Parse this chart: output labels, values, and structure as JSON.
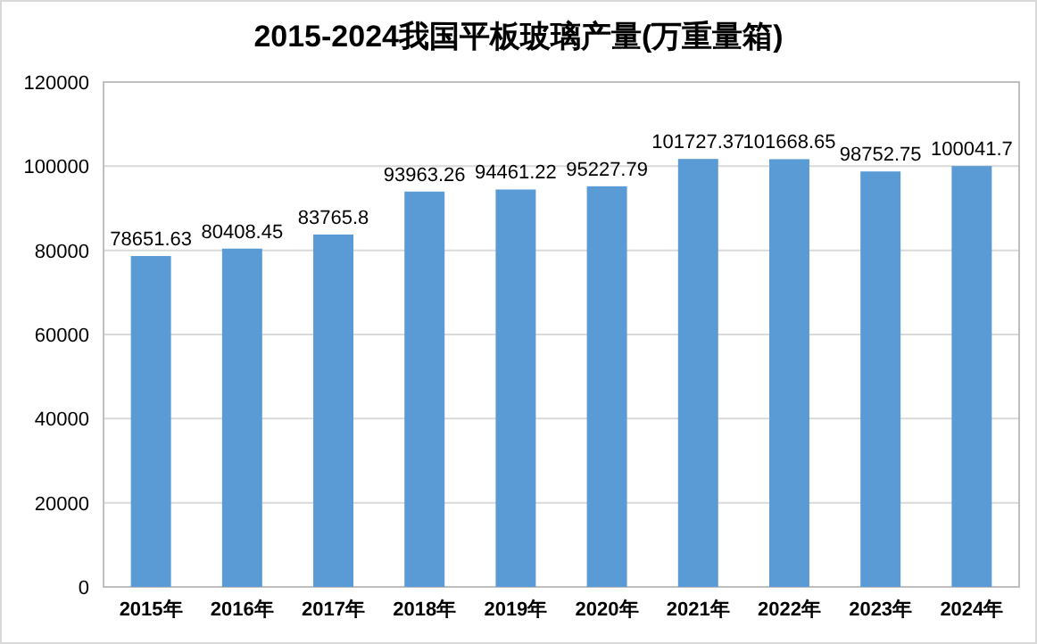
{
  "chart_data": {
    "type": "bar",
    "title": "2015-2024我国平板玻璃产量(万重量箱)",
    "categories": [
      "2015年",
      "2016年",
      "2017年",
      "2018年",
      "2019年",
      "2020年",
      "2021年",
      "2022年",
      "2023年",
      "2024年"
    ],
    "values": [
      78651.63,
      80408.45,
      83765.8,
      93963.26,
      94461.22,
      95227.79,
      101727.37,
      101668.65,
      98752.75,
      100041.7
    ],
    "color": "#5b9bd5",
    "ylim": [
      0,
      120000
    ],
    "yticks": [
      0,
      20000,
      40000,
      60000,
      80000,
      100000,
      120000
    ],
    "grid": "y",
    "data_labels": true
  }
}
